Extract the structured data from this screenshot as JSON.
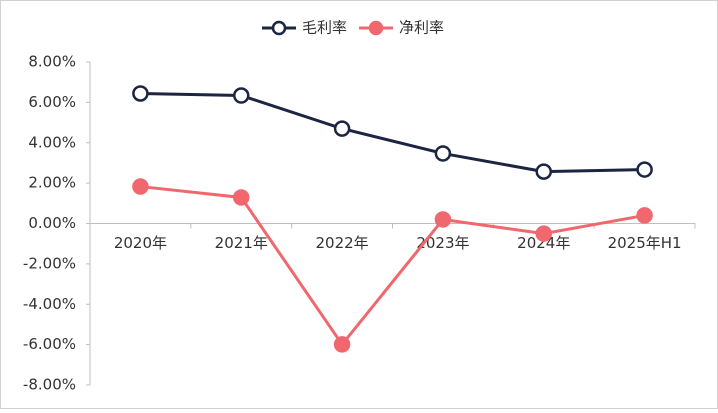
{
  "chart_data": {
    "type": "line",
    "categories": [
      "2020年",
      "2021年",
      "2022年",
      "2023年",
      "2024年",
      "2025年H1"
    ],
    "series": [
      {
        "name": "毛利率",
        "color": "#1c2541",
        "marker": "hollow",
        "values": [
          6.44,
          6.34,
          4.7,
          3.47,
          2.57,
          2.67
        ]
      },
      {
        "name": "净利率",
        "color": "#f0686e",
        "marker": "filled",
        "values": [
          1.83,
          1.29,
          -5.99,
          0.2,
          -0.5,
          0.4
        ]
      }
    ],
    "ylim": [
      -8,
      8
    ],
    "yticks": [
      {
        "value": -8,
        "label": "-8.00%"
      },
      {
        "value": -6,
        "label": "-6.00%"
      },
      {
        "value": -4,
        "label": "-4.00%"
      },
      {
        "value": -2,
        "label": "-2.00%"
      },
      {
        "value": 0,
        "label": "0.00%"
      },
      {
        "value": 2,
        "label": "2.00%"
      },
      {
        "value": 4,
        "label": "4.00%"
      },
      {
        "value": 6,
        "label": "6.00%"
      },
      {
        "value": 8,
        "label": "8.00%"
      }
    ],
    "legend": "top"
  }
}
